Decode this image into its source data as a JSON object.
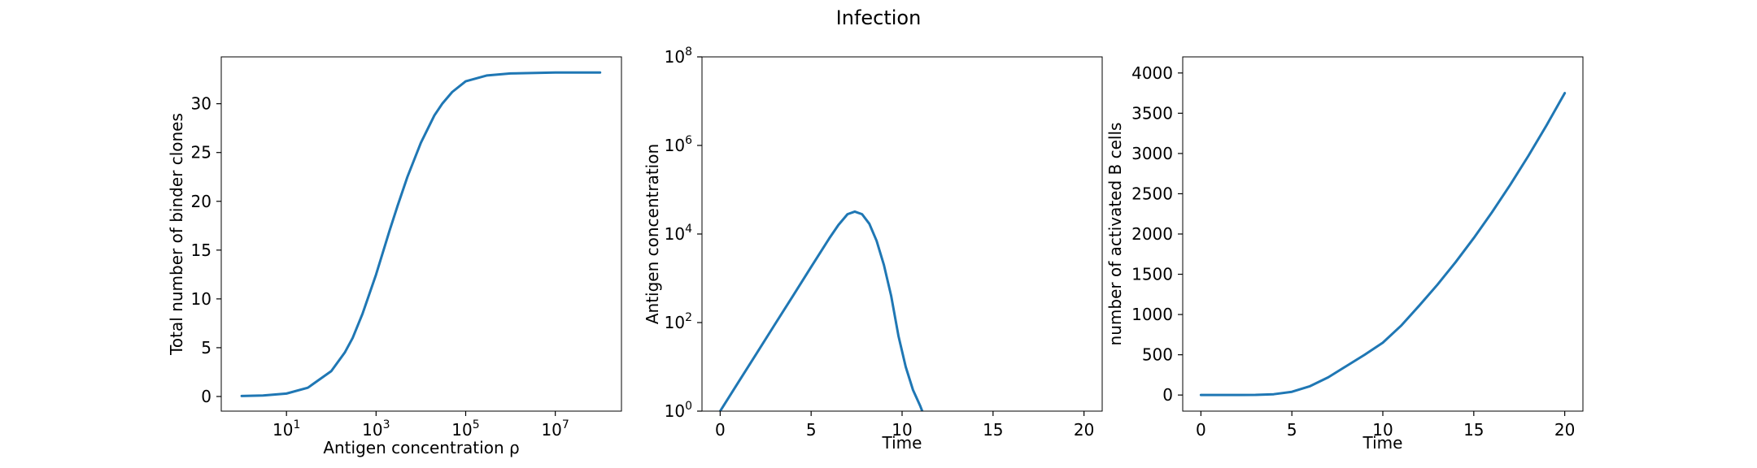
{
  "figure": {
    "suptitle": "Infection"
  },
  "style": {
    "line_color": "#1f77b4",
    "background": "#ffffff",
    "spine_color": "#000000"
  },
  "chart_data": [
    {
      "type": "line",
      "title": "",
      "xlabel": "Antigen concentration ρ",
      "ylabel": "Total number of binder clones",
      "xscale": "log",
      "xlim": [
        0.35,
        300000000.0
      ],
      "ylim": [
        -1.5,
        34.8
      ],
      "xticks": [
        {
          "value": 10,
          "base": "10",
          "exp": "1"
        },
        {
          "value": 1000,
          "base": "10",
          "exp": "3"
        },
        {
          "value": 100000,
          "base": "10",
          "exp": "5"
        },
        {
          "value": 10000000,
          "base": "10",
          "exp": "7"
        }
      ],
      "yticks": [
        {
          "value": 0,
          "label": "0"
        },
        {
          "value": 5,
          "label": "5"
        },
        {
          "value": 10,
          "label": "10"
        },
        {
          "value": 15,
          "label": "15"
        },
        {
          "value": 20,
          "label": "20"
        },
        {
          "value": 25,
          "label": "25"
        },
        {
          "value": 30,
          "label": "30"
        }
      ],
      "grid": false,
      "legend": "none",
      "series": [
        {
          "x": [
            1,
            3,
            10,
            30,
            100,
            200,
            300,
            500,
            1000,
            2000,
            3000,
            5000,
            10000,
            20000,
            30000,
            50000,
            100000,
            300000,
            1000000,
            10000000,
            100000000
          ],
          "y": [
            0.05,
            0.1,
            0.3,
            0.9,
            2.6,
            4.5,
            6.0,
            8.5,
            12.5,
            17.0,
            19.5,
            22.5,
            26.0,
            28.8,
            30.0,
            31.2,
            32.3,
            32.9,
            33.1,
            33.2,
            33.2
          ]
        }
      ]
    },
    {
      "type": "line",
      "title": "",
      "xlabel": "Time",
      "ylabel": "Antigen concentration",
      "yscale": "log",
      "xlim": [
        -1.0,
        21.0
      ],
      "ylim": [
        1,
        100000000
      ],
      "xticks": [
        {
          "value": 0,
          "label": "0"
        },
        {
          "value": 5,
          "label": "5"
        },
        {
          "value": 10,
          "label": "10"
        },
        {
          "value": 15,
          "label": "15"
        },
        {
          "value": 20,
          "label": "20"
        }
      ],
      "yticks": [
        {
          "value": 1,
          "base": "10",
          "exp": "0"
        },
        {
          "value": 100,
          "base": "10",
          "exp": "2"
        },
        {
          "value": 10000,
          "base": "10",
          "exp": "4"
        },
        {
          "value": 1000000,
          "base": "10",
          "exp": "6"
        },
        {
          "value": 100000000,
          "base": "10",
          "exp": "8"
        }
      ],
      "grid": false,
      "legend": "none",
      "series": [
        {
          "x": [
            0,
            1,
            2,
            3,
            4,
            5,
            6,
            6.5,
            7,
            7.4,
            7.8,
            8.2,
            8.6,
            9.0,
            9.4,
            9.8,
            10.2,
            10.6,
            11.0,
            11.2
          ],
          "y": [
            1,
            4.5,
            20,
            90,
            400,
            1800,
            8000,
            16000,
            28000,
            32000,
            28000,
            17000,
            7000,
            2000,
            400,
            50,
            10,
            3,
            1.3,
            0.8
          ]
        }
      ]
    },
    {
      "type": "line",
      "title": "",
      "xlabel": "Time",
      "ylabel": "number of activated B cells",
      "xlim": [
        -1.0,
        21.0
      ],
      "ylim": [
        -200,
        4200
      ],
      "xticks": [
        {
          "value": 0,
          "label": "0"
        },
        {
          "value": 5,
          "label": "5"
        },
        {
          "value": 10,
          "label": "10"
        },
        {
          "value": 15,
          "label": "15"
        },
        {
          "value": 20,
          "label": "20"
        }
      ],
      "yticks": [
        {
          "value": 0,
          "label": "0"
        },
        {
          "value": 500,
          "label": "500"
        },
        {
          "value": 1000,
          "label": "1000"
        },
        {
          "value": 1500,
          "label": "1500"
        },
        {
          "value": 2000,
          "label": "2000"
        },
        {
          "value": 2500,
          "label": "2500"
        },
        {
          "value": 3000,
          "label": "3000"
        },
        {
          "value": 3500,
          "label": "3500"
        },
        {
          "value": 4000,
          "label": "4000"
        }
      ],
      "grid": false,
      "legend": "none",
      "series": [
        {
          "x": [
            0,
            1,
            2,
            3,
            4,
            5,
            6,
            7,
            8,
            9,
            10,
            11,
            12,
            13,
            14,
            15,
            16,
            17,
            18,
            19,
            20
          ],
          "y": [
            0,
            0,
            0,
            2,
            10,
            40,
            110,
            220,
            360,
            500,
            650,
            860,
            1110,
            1370,
            1650,
            1950,
            2270,
            2610,
            2970,
            3350,
            3750
          ]
        }
      ]
    }
  ]
}
